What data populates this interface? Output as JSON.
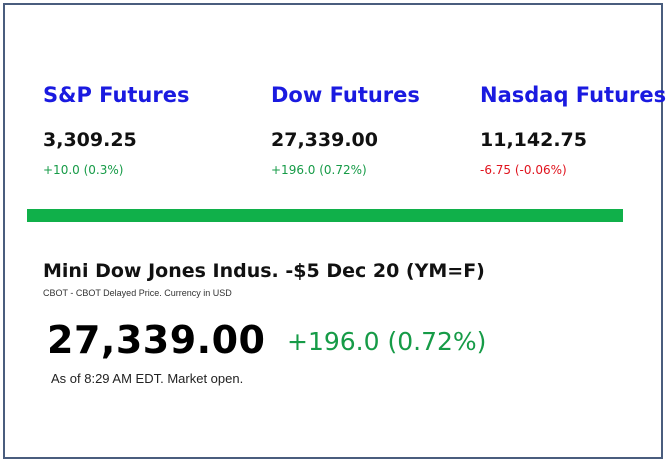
{
  "futures": [
    {
      "name": "S&P Futures",
      "price": "3,309.25",
      "change": "+10.0 (0.3%)",
      "direction": "up"
    },
    {
      "name": "Dow Futures",
      "price": "27,339.00",
      "change": "+196.0 (0.72%)",
      "direction": "up"
    },
    {
      "name": "Nasdaq Futures",
      "price": "11,142.75",
      "change": "-6.75 (-0.06%)",
      "direction": "down"
    }
  ],
  "quote": {
    "title": "Mini Dow Jones Indus. -$5 Dec 20 (YM=F)",
    "source": "CBOT - CBOT Delayed Price. Currency in USD",
    "price": "27,339.00",
    "change": "+196.0 (0.72%)",
    "as_of": "As of 8:29 AM EDT. Market open."
  },
  "colors": {
    "future_name": "#1a1ae0",
    "positive": "#169b47",
    "negative": "#e0141e",
    "divider_bar": "#10b04a",
    "frame_border": "#4a5d7e"
  }
}
